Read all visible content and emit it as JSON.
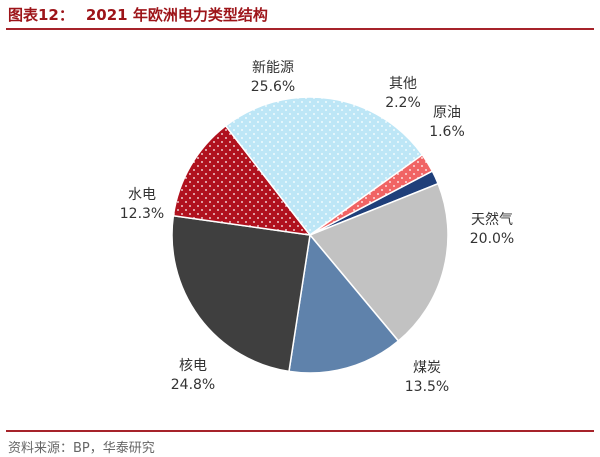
{
  "header": {
    "figure_num": "图表12：",
    "title": "2021 年欧洲电力类型结构"
  },
  "source": "资料来源：BP，华泰研究",
  "chart_data": {
    "type": "pie",
    "slices": [
      {
        "name": "原油",
        "value": 1.6,
        "label": "1.6%",
        "color": "#1f3f7a",
        "pattern": "none"
      },
      {
        "name": "天然气",
        "value": 20.0,
        "label": "20.0%",
        "color": "#c2c2c2",
        "pattern": "none"
      },
      {
        "name": "煤炭",
        "value": 13.5,
        "label": "13.5%",
        "color": "#5f82ab",
        "pattern": "none"
      },
      {
        "name": "核电",
        "value": 24.8,
        "label": "24.8%",
        "color": "#3f3f3f",
        "pattern": "none"
      },
      {
        "name": "水电",
        "value": 12.3,
        "label": "12.3%",
        "color": "#b0111e",
        "pattern": "dots-white"
      },
      {
        "name": "新能源",
        "value": 25.6,
        "label": "25.6%",
        "color": "#bde6f6",
        "pattern": "dots-white"
      },
      {
        "name": "其他",
        "value": 2.2,
        "label": "2.2%",
        "color": "#f06464",
        "pattern": "dots-white"
      }
    ]
  }
}
